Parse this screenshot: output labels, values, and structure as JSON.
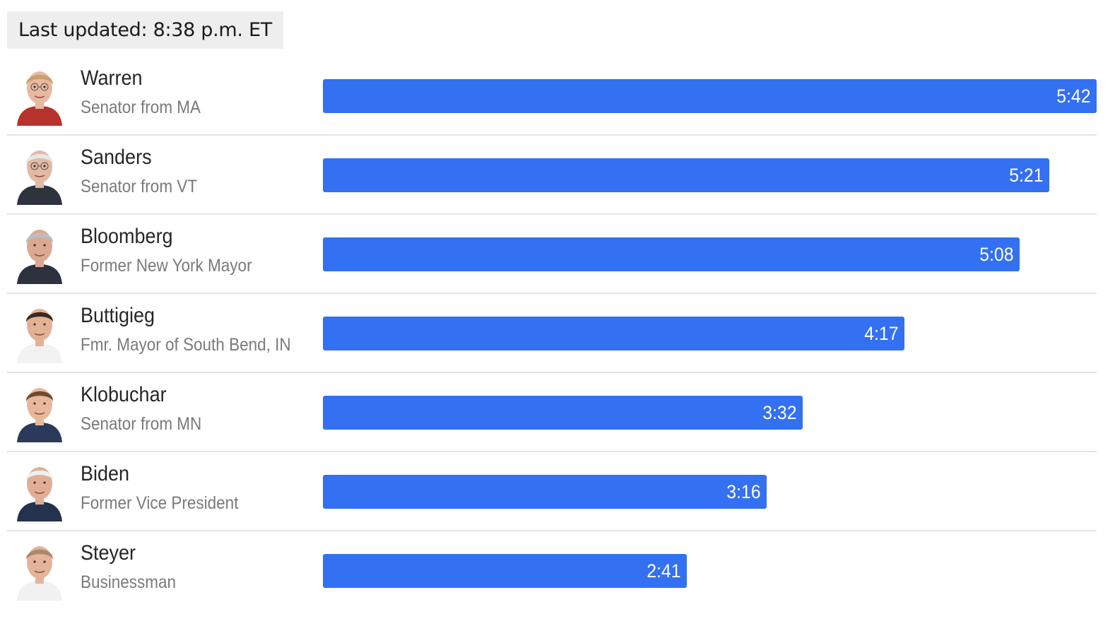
{
  "header": {
    "last_updated": "Last updated: 8:38 p.m. ET"
  },
  "colors": {
    "bar": "#3370f2",
    "badge_bg": "#eeeeee",
    "divider": "#e6e6e6"
  },
  "chart_data": {
    "type": "bar",
    "orientation": "horizontal",
    "categories": [
      "Warren",
      "Sanders",
      "Bloomberg",
      "Buttigieg",
      "Klobuchar",
      "Biden",
      "Steyer"
    ],
    "values": [
      342,
      321,
      308,
      257,
      212,
      196,
      161
    ],
    "value_unit": "seconds",
    "value_labels": [
      "5:42",
      "5:21",
      "5:08",
      "4:17",
      "3:32",
      "3:16",
      "2:41"
    ],
    "xlim": [
      0,
      342
    ],
    "grid": false,
    "legend": "none"
  },
  "candidates": [
    {
      "name": "Warren",
      "title": "Senator from MA",
      "time": "5:42",
      "seconds": 342,
      "avatar": "warren-portrait-icon"
    },
    {
      "name": "Sanders",
      "title": "Senator from VT",
      "time": "5:21",
      "seconds": 321,
      "avatar": "sanders-portrait-icon"
    },
    {
      "name": "Bloomberg",
      "title": "Former New York Mayor",
      "time": "5:08",
      "seconds": 308,
      "avatar": "bloomberg-portrait-icon"
    },
    {
      "name": "Buttigieg",
      "title": "Fmr. Mayor of South Bend, IN",
      "time": "4:17",
      "seconds": 257,
      "avatar": "buttigieg-portrait-icon"
    },
    {
      "name": "Klobuchar",
      "title": "Senator from MN",
      "time": "3:32",
      "seconds": 212,
      "avatar": "klobuchar-portrait-icon"
    },
    {
      "name": "Biden",
      "title": "Former Vice President",
      "time": "3:16",
      "seconds": 196,
      "avatar": "biden-portrait-icon"
    },
    {
      "name": "Steyer",
      "title": "Businessman",
      "time": "2:41",
      "seconds": 161,
      "avatar": "steyer-portrait-icon"
    }
  ]
}
